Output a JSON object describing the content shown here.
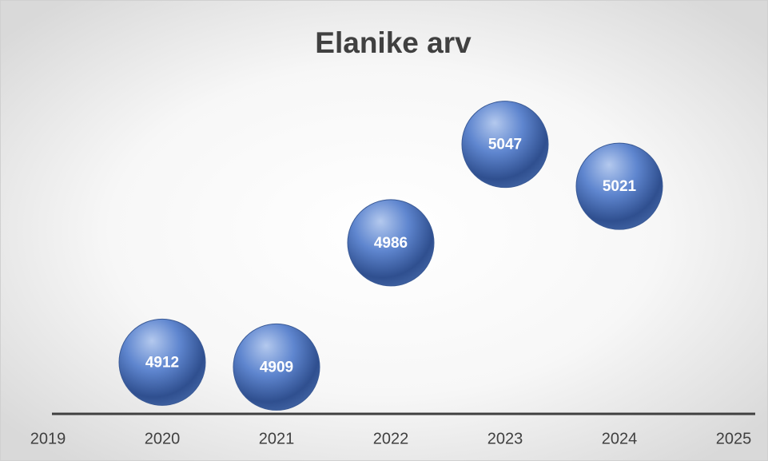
{
  "chart_data": {
    "type": "bubble",
    "title": "Elanike arv",
    "x": [
      2020,
      2021,
      2022,
      2023,
      2024
    ],
    "values": [
      4912,
      4909,
      4986,
      5047,
      5021
    ],
    "color": "#4f76c0",
    "xlim": [
      2019,
      2025
    ],
    "xticks": [
      2019,
      2020,
      2021,
      2022,
      2023,
      2024,
      2025
    ],
    "ylim": [
      4880,
      5080
    ]
  }
}
